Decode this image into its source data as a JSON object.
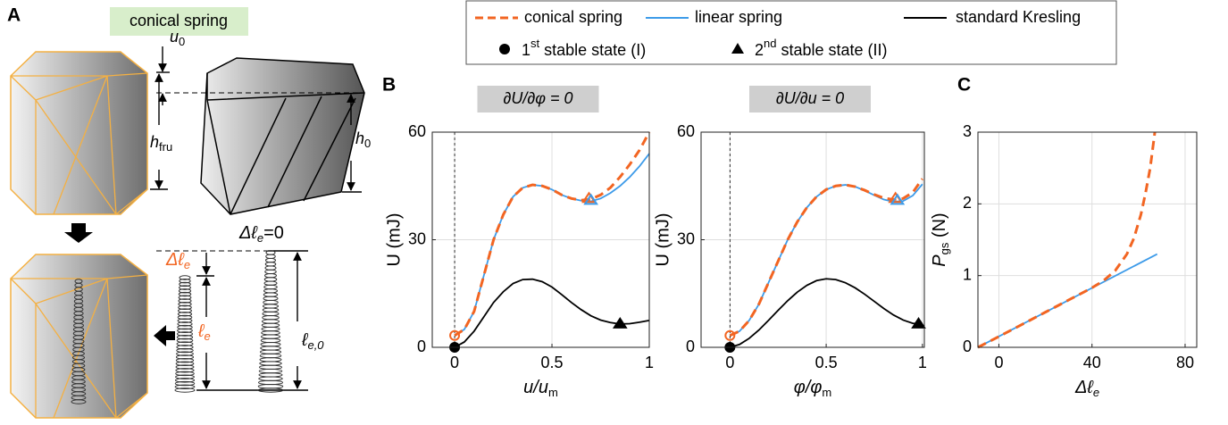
{
  "panel_labels": {
    "a": "A",
    "b": "B",
    "c": "C"
  },
  "diagram": {
    "tag": "conical spring",
    "u0": {
      "text": "u",
      "sub": "0"
    },
    "h_fru": {
      "text": "h",
      "sub": "fru"
    },
    "h0": {
      "text": "h",
      "sub": "0"
    },
    "delta_zero": {
      "text": "Δℓ",
      "sub": "e",
      "after": "=0"
    },
    "delta": {
      "text": "Δℓ",
      "sub": "e"
    },
    "ell": {
      "text": "ℓ",
      "sub": "e"
    },
    "ell0": {
      "text": "ℓ",
      "sub": "e,0"
    }
  },
  "legend": {
    "stable_states": [
      {
        "ordinal": "1",
        "suffix": "st",
        "text": "stable state (I)"
      },
      {
        "ordinal": "2",
        "suffix": "nd",
        "text": "stable state (II)"
      }
    ]
  },
  "chart_data": [
    {
      "type": "line",
      "title": "∂U/∂φ = 0",
      "xlabel": {
        "text": "u/u",
        "sub": "m"
      },
      "ylabel": "U (mJ)",
      "xlim": [
        -0.115,
        1
      ],
      "ylim": [
        0,
        60
      ],
      "xticks": [
        0,
        0.5,
        1
      ],
      "yticks": [
        0,
        30,
        60
      ],
      "grid": true,
      "reference_x": 0,
      "series": [
        {
          "name": "conical spring",
          "color": "#f26522",
          "dashed": true,
          "x": [
            0,
            0.05,
            0.1,
            0.15,
            0.2,
            0.25,
            0.3,
            0.35,
            0.4,
            0.45,
            0.5,
            0.55,
            0.6,
            0.65,
            0.7,
            0.75,
            0.8,
            0.85,
            0.9,
            0.95,
            1
          ],
          "values": [
            3.3,
            5,
            10,
            20,
            30,
            37,
            42,
            44.5,
            45.3,
            45,
            44,
            42.5,
            41.5,
            41,
            41.3,
            42.5,
            44.5,
            47.5,
            51,
            55,
            60
          ]
        },
        {
          "name": "linear spring",
          "color": "#3d9be9",
          "dashed": false,
          "x": [
            0,
            0.05,
            0.1,
            0.15,
            0.2,
            0.25,
            0.3,
            0.35,
            0.4,
            0.45,
            0.5,
            0.55,
            0.6,
            0.65,
            0.7,
            0.75,
            0.8,
            0.85,
            0.9,
            0.95,
            1
          ],
          "values": [
            3.3,
            5,
            10,
            20,
            30,
            37,
            42,
            44.5,
            45.3,
            45,
            44,
            42.5,
            41.5,
            40.9,
            40.7,
            41.5,
            43,
            45,
            47.5,
            50.5,
            54
          ]
        },
        {
          "name": "standard Kresling",
          "color": "#000000",
          "dashed": false,
          "x": [
            0,
            0.05,
            0.1,
            0.15,
            0.2,
            0.25,
            0.3,
            0.35,
            0.4,
            0.45,
            0.5,
            0.55,
            0.6,
            0.65,
            0.7,
            0.75,
            0.8,
            0.85,
            0.9,
            0.95,
            1
          ],
          "values": [
            0,
            1.5,
            4.5,
            8.5,
            12.5,
            15.5,
            17.8,
            18.9,
            19,
            18.3,
            16.8,
            14.7,
            12.5,
            10.5,
            8.8,
            7.6,
            6.9,
            6.5,
            6.6,
            7,
            7.5
          ]
        }
      ],
      "markers": [
        {
          "x": 0,
          "y": 3.3,
          "shape": "circle",
          "color": "#f26522",
          "filled": false
        },
        {
          "x": 0.69,
          "y": 41.5,
          "shape": "triangle",
          "color": "#f26522",
          "filled": false
        },
        {
          "x": 0.7,
          "y": 41,
          "shape": "triangle",
          "color": "#3d9be9",
          "filled": false
        },
        {
          "x": 0,
          "y": 0,
          "shape": "circle",
          "color": "#000000",
          "filled": true
        },
        {
          "x": 0.85,
          "y": 6.5,
          "shape": "triangle",
          "color": "#000000",
          "filled": true
        }
      ]
    },
    {
      "type": "line",
      "title": "∂U/∂u = 0",
      "xlabel": {
        "text": "φ/φ",
        "sub": "m"
      },
      "ylabel": "U (mJ)",
      "xlim": [
        -0.15,
        1.01
      ],
      "ylim": [
        0,
        60
      ],
      "xticks": [
        0,
        0.5,
        1
      ],
      "yticks": [
        0,
        30,
        60
      ],
      "grid": true,
      "reference_x": 0,
      "series": [
        {
          "color": "#f26522",
          "dashed": true,
          "x": [
            0,
            0.05,
            0.1,
            0.15,
            0.2,
            0.25,
            0.3,
            0.35,
            0.4,
            0.45,
            0.5,
            0.55,
            0.6,
            0.65,
            0.7,
            0.75,
            0.8,
            0.85,
            0.9,
            0.95,
            1
          ],
          "values": [
            3.3,
            4.5,
            7.5,
            12,
            18,
            24,
            30,
            35,
            39,
            42,
            44,
            45,
            45.3,
            44.8,
            43.8,
            42.6,
            41.6,
            41.2,
            41.5,
            43.2,
            47
          ]
        },
        {
          "color": "#3d9be9",
          "dashed": false,
          "x": [
            0,
            0.05,
            0.1,
            0.15,
            0.2,
            0.25,
            0.3,
            0.35,
            0.4,
            0.45,
            0.5,
            0.55,
            0.6,
            0.65,
            0.7,
            0.75,
            0.8,
            0.85,
            0.9,
            0.95,
            1
          ],
          "values": [
            3.3,
            4.5,
            7.5,
            12,
            18,
            24,
            30,
            35,
            39,
            42,
            44,
            45,
            45.3,
            44.8,
            43.7,
            42.4,
            41.2,
            40.6,
            40.8,
            42.3,
            45.5
          ]
        },
        {
          "color": "#000000",
          "dashed": false,
          "x": [
            0,
            0.05,
            0.1,
            0.15,
            0.2,
            0.25,
            0.3,
            0.35,
            0.4,
            0.45,
            0.5,
            0.55,
            0.6,
            0.65,
            0.7,
            0.75,
            0.8,
            0.85,
            0.9,
            0.95,
            1
          ],
          "values": [
            0,
            0.8,
            2.5,
            4.8,
            7.5,
            10.3,
            13,
            15.4,
            17.3,
            18.6,
            19.1,
            18.9,
            18,
            16.6,
            14.8,
            12.8,
            10.8,
            9,
            7.6,
            6.7,
            6.5
          ]
        }
      ],
      "markers": [
        {
          "x": 0,
          "y": 3.3,
          "shape": "circle",
          "color": "#f26522",
          "filled": false
        },
        {
          "x": 0.86,
          "y": 41.5,
          "shape": "triangle",
          "color": "#f26522",
          "filled": false
        },
        {
          "x": 0.87,
          "y": 41,
          "shape": "triangle",
          "color": "#3d9be9",
          "filled": false
        },
        {
          "x": 0,
          "y": 0,
          "shape": "circle",
          "color": "#000000",
          "filled": true
        },
        {
          "x": 0.98,
          "y": 6.5,
          "shape": "triangle",
          "color": "#000000",
          "filled": true
        }
      ]
    },
    {
      "type": "line",
      "xlabel": {
        "text": "Δℓ",
        "sub": "e"
      },
      "ylabel": {
        "text": "P",
        "sub": "gs",
        "after": " (N)"
      },
      "xlim": [
        -9,
        85
      ],
      "ylim": [
        0,
        3
      ],
      "xticks": [
        0,
        40,
        80
      ],
      "yticks": [
        0,
        1,
        2,
        3
      ],
      "grid": true,
      "series": [
        {
          "color": "#f26522",
          "dashed": true,
          "x": [
            -9,
            0,
            10,
            20,
            30,
            40,
            45,
            50,
            55,
            58,
            61,
            63,
            65,
            66,
            67
          ],
          "values": [
            0,
            0.15,
            0.32,
            0.49,
            0.66,
            0.83,
            0.93,
            1.07,
            1.3,
            1.52,
            1.85,
            2.15,
            2.5,
            2.75,
            3
          ]
        },
        {
          "color": "#3d9be9",
          "dashed": false,
          "x": [
            -9,
            68
          ],
          "values": [
            0,
            1.3
          ]
        }
      ],
      "markers": []
    }
  ]
}
